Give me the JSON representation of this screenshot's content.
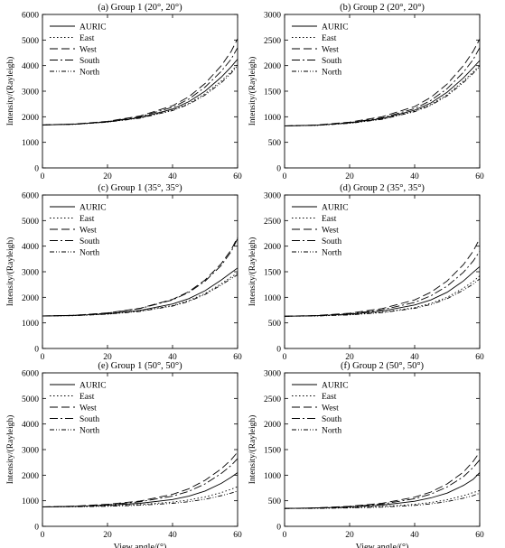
{
  "chart_data": [
    {
      "type": "line",
      "title": "(a) Group 1 (20°, 20°)",
      "xlabel": "",
      "ylabel": "Intensity/(Rayleigh)",
      "xlim": [
        0,
        60
      ],
      "ylim": [
        0,
        6000
      ],
      "xticks": [
        0,
        20,
        40,
        60
      ],
      "yticks": [
        0,
        1000,
        2000,
        3000,
        4000,
        5000,
        6000
      ],
      "legend_position": "top-left",
      "x": [
        0,
        10,
        20,
        30,
        40,
        45,
        50,
        55,
        58,
        60
      ],
      "series": [
        {
          "name": "AURIC",
          "values": [
            1680,
            1710,
            1800,
            1970,
            2300,
            2590,
            3000,
            3550,
            3950,
            4250
          ]
        },
        {
          "name": "East",
          "values": [
            1680,
            1710,
            1795,
            1955,
            2260,
            2520,
            2900,
            3400,
            3760,
            4050
          ]
        },
        {
          "name": "West",
          "values": [
            1680,
            1720,
            1820,
            2030,
            2430,
            2780,
            3300,
            4000,
            4550,
            5050
          ]
        },
        {
          "name": "South",
          "values": [
            1680,
            1715,
            1810,
            2000,
            2370,
            2690,
            3160,
            3780,
            4250,
            4700
          ]
        },
        {
          "name": "North",
          "values": [
            1680,
            1705,
            1790,
            1945,
            2240,
            2490,
            2850,
            3330,
            3700,
            4000
          ]
        }
      ]
    },
    {
      "type": "line",
      "title": "(b) Group 2 (20°, 20°)",
      "xlabel": "",
      "ylabel": "Intensity/(Rayleigh)",
      "xlim": [
        0,
        60
      ],
      "ylim": [
        0,
        3000
      ],
      "xticks": [
        0,
        20,
        40,
        60
      ],
      "yticks": [
        0,
        500,
        1000,
        1500,
        2000,
        2500,
        3000
      ],
      "legend_position": "top-left",
      "x": [
        0,
        10,
        20,
        30,
        40,
        45,
        50,
        55,
        58,
        60
      ],
      "series": [
        {
          "name": "AURIC",
          "values": [
            820,
            835,
            880,
            965,
            1130,
            1270,
            1480,
            1760,
            1960,
            2100
          ]
        },
        {
          "name": "East",
          "values": [
            820,
            833,
            875,
            955,
            1110,
            1240,
            1430,
            1700,
            1880,
            2000
          ]
        },
        {
          "name": "West",
          "values": [
            820,
            840,
            895,
            1000,
            1200,
            1380,
            1640,
            2000,
            2280,
            2520
          ]
        },
        {
          "name": "South",
          "values": [
            820,
            837,
            885,
            980,
            1160,
            1320,
            1550,
            1870,
            2120,
            2350
          ]
        },
        {
          "name": "North",
          "values": [
            820,
            832,
            872,
            950,
            1100,
            1225,
            1410,
            1670,
            1850,
            1980
          ]
        }
      ]
    },
    {
      "type": "line",
      "title": "(c) Group 1 (35°, 35°)",
      "xlabel": "",
      "ylabel": "Intensity/(Rayleigh)",
      "xlim": [
        0,
        60
      ],
      "ylim": [
        0,
        6000
      ],
      "xticks": [
        0,
        20,
        40,
        60
      ],
      "yticks": [
        0,
        1000,
        2000,
        3000,
        4000,
        5000,
        6000
      ],
      "legend_position": "top-left",
      "x": [
        0,
        10,
        20,
        30,
        40,
        45,
        50,
        55,
        58,
        60
      ],
      "series": [
        {
          "name": "AURIC",
          "values": [
            1270,
            1290,
            1360,
            1490,
            1740,
            1950,
            2260,
            2680,
            2960,
            3150
          ]
        },
        {
          "name": "East",
          "values": [
            1270,
            1285,
            1345,
            1460,
            1680,
            1870,
            2150,
            2530,
            2790,
            2950
          ]
        },
        {
          "name": "West",
          "values": [
            1270,
            1300,
            1390,
            1570,
            1920,
            2220,
            2680,
            3320,
            3850,
            4350
          ]
        },
        {
          "name": "South",
          "values": [
            1270,
            1298,
            1385,
            1560,
            1900,
            2190,
            2630,
            3250,
            3780,
            4300
          ]
        },
        {
          "name": "North",
          "values": [
            1270,
            1283,
            1340,
            1450,
            1660,
            1840,
            2110,
            2480,
            2730,
            2880
          ]
        }
      ]
    },
    {
      "type": "line",
      "title": "(d) Group 2 (35°, 35°)",
      "xlabel": "",
      "ylabel": "Intensity/(Rayleigh)",
      "xlim": [
        0,
        60
      ],
      "ylim": [
        0,
        3000
      ],
      "xticks": [
        0,
        20,
        40,
        60
      ],
      "yticks": [
        0,
        500,
        1000,
        1500,
        2000,
        2500,
        3000
      ],
      "legend_position": "top-left",
      "x": [
        0,
        10,
        20,
        30,
        40,
        45,
        50,
        55,
        58,
        60
      ],
      "series": [
        {
          "name": "AURIC",
          "values": [
            630,
            640,
            670,
            730,
            850,
            950,
            1100,
            1320,
            1490,
            1600
          ]
        },
        {
          "name": "East",
          "values": [
            630,
            637,
            660,
            708,
            800,
            880,
            1000,
            1180,
            1310,
            1420
          ]
        },
        {
          "name": "West",
          "values": [
            630,
            645,
            690,
            780,
            950,
            1100,
            1320,
            1640,
            1900,
            2150
          ]
        },
        {
          "name": "South",
          "values": [
            630,
            642,
            680,
            755,
            900,
            1030,
            1220,
            1490,
            1710,
            1900
          ]
        },
        {
          "name": "North",
          "values": [
            630,
            636,
            657,
            700,
            785,
            860,
            975,
            1140,
            1260,
            1360
          ]
        }
      ]
    },
    {
      "type": "line",
      "title": "(e) Group 1 (50°, 50°)",
      "xlabel": "View angle/(°)",
      "ylabel": "Intensity/(Rayleigh)",
      "xlim": [
        0,
        60
      ],
      "ylim": [
        0,
        6000
      ],
      "xticks": [
        0,
        20,
        40,
        60
      ],
      "yticks": [
        0,
        1000,
        2000,
        3000,
        4000,
        5000,
        6000
      ],
      "legend_position": "top-left",
      "x": [
        0,
        10,
        20,
        30,
        40,
        45,
        50,
        55,
        58,
        60
      ],
      "series": [
        {
          "name": "AURIC",
          "values": [
            760,
            780,
            825,
            900,
            1050,
            1180,
            1380,
            1680,
            1920,
            2100
          ]
        },
        {
          "name": "East",
          "values": [
            760,
            770,
            800,
            850,
            950,
            1030,
            1150,
            1320,
            1450,
            1550
          ]
        },
        {
          "name": "West",
          "values": [
            760,
            790,
            860,
            990,
            1250,
            1470,
            1800,
            2250,
            2600,
            2900
          ]
        },
        {
          "name": "South",
          "values": [
            760,
            785,
            845,
            960,
            1180,
            1370,
            1660,
            2070,
            2380,
            2650
          ]
        },
        {
          "name": "North",
          "values": [
            760,
            765,
            785,
            825,
            900,
            965,
            1060,
            1200,
            1300,
            1380
          ]
        }
      ]
    },
    {
      "type": "line",
      "title": "(f) Group 2 (50°, 50°)",
      "xlabel": "View angle/(°)",
      "ylabel": "Intensity/(Rayleigh)",
      "xlim": [
        0,
        60
      ],
      "ylim": [
        0,
        3000
      ],
      "xticks": [
        0,
        20,
        40,
        60
      ],
      "yticks": [
        0,
        500,
        1000,
        1500,
        2000,
        2500,
        3000
      ],
      "legend_position": "top-left",
      "x": [
        0,
        10,
        20,
        30,
        40,
        45,
        50,
        55,
        58,
        60
      ],
      "series": [
        {
          "name": "AURIC",
          "values": [
            350,
            358,
            378,
            415,
            490,
            555,
            650,
            800,
            920,
            1050
          ]
        },
        {
          "name": "East",
          "values": [
            350,
            354,
            365,
            387,
            430,
            465,
            520,
            600,
            660,
            700
          ]
        },
        {
          "name": "West",
          "values": [
            350,
            362,
            392,
            450,
            570,
            670,
            830,
            1060,
            1270,
            1450
          ]
        },
        {
          "name": "South",
          "values": [
            350,
            360,
            385,
            435,
            540,
            630,
            770,
            970,
            1150,
            1300
          ]
        },
        {
          "name": "North",
          "values": [
            350,
            352,
            360,
            376,
            410,
            440,
            485,
            550,
            600,
            650
          ]
        }
      ]
    }
  ]
}
